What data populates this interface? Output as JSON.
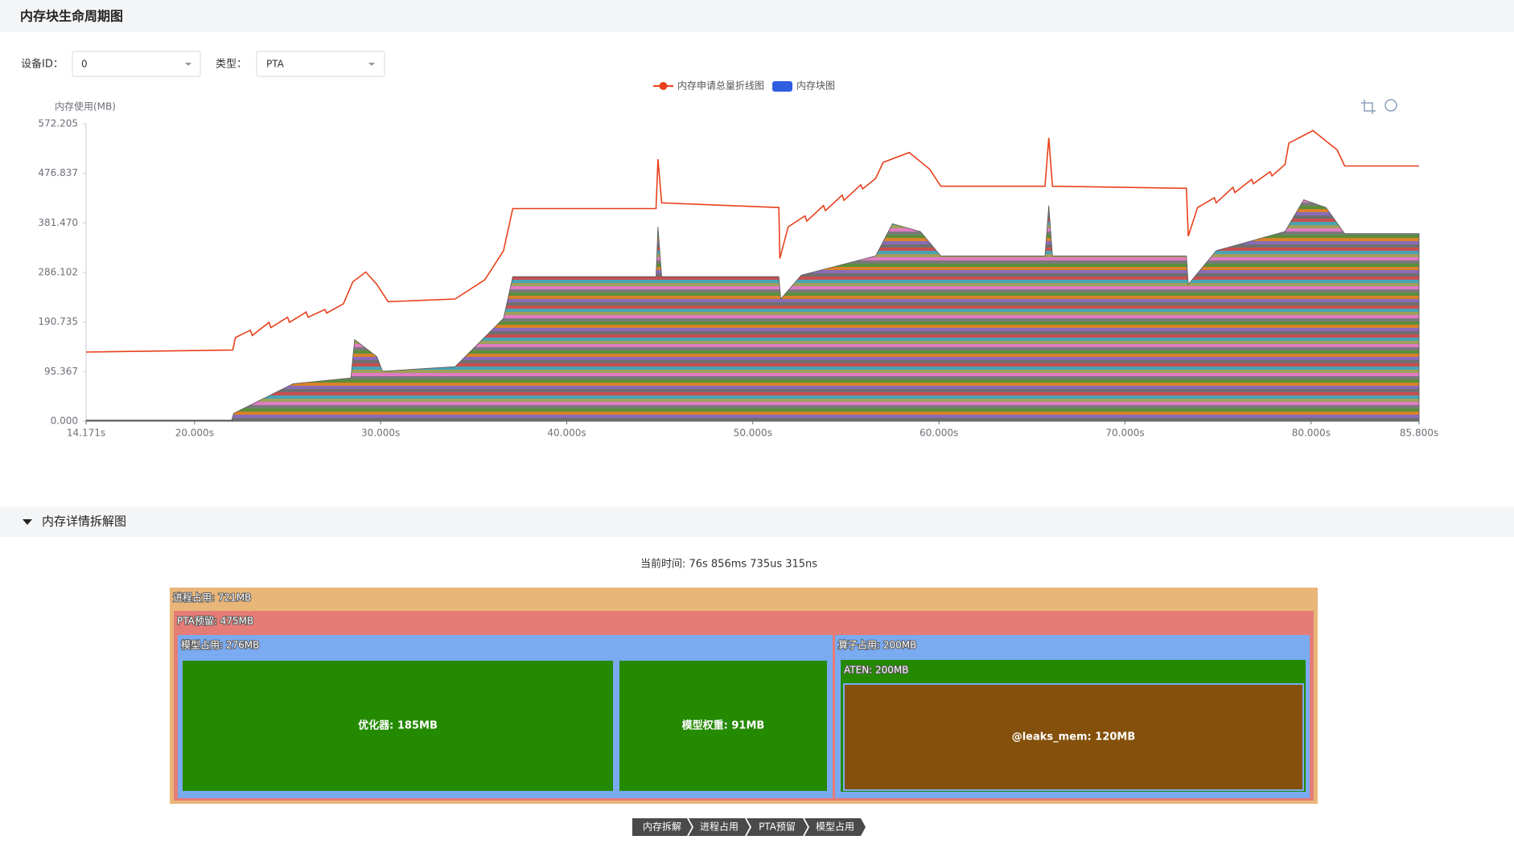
{
  "header": {
    "title": "内存块生命周期图"
  },
  "controls": {
    "device_label": "设备ID：",
    "device_value": "0",
    "type_label": "类型：",
    "type_value": "PTA"
  },
  "chart_data": {
    "type": "line",
    "ylabel": "内存使用(MB)",
    "xlim": [
      14.171,
      85.8
    ],
    "ylim": [
      0,
      572.205
    ],
    "xticks": [
      {
        "value": 14.171,
        "label": "14.171s"
      },
      {
        "value": 20,
        "label": "20.000s"
      },
      {
        "value": 30,
        "label": "30.000s"
      },
      {
        "value": 40,
        "label": "40.000s"
      },
      {
        "value": 50,
        "label": "50.000s"
      },
      {
        "value": 60,
        "label": "60.000s"
      },
      {
        "value": 70,
        "label": "70.000s"
      },
      {
        "value": 80,
        "label": "80.000s"
      },
      {
        "value": 85.8,
        "label": "85.800s"
      }
    ],
    "yticks": [
      {
        "value": 0,
        "label": "0.000"
      },
      95.367,
      {
        "value": 190.735,
        "label": "190.735"
      },
      286.102,
      {
        "value": 381.47,
        "label": "381.470"
      },
      476.837,
      572.205
    ],
    "grid": false,
    "series": [
      {
        "name": "内存申请总量折线图",
        "color": "#e8401c",
        "kind": "line",
        "x": [
          14.171,
          22.05,
          22.2,
          23,
          23.1,
          24,
          24.1,
          25,
          25.1,
          26,
          26.1,
          27,
          27.1,
          28,
          28.5,
          29.2,
          29.8,
          30.4,
          34,
          35.6,
          36.6,
          37.1,
          44.8,
          44.9,
          45.1,
          51.4,
          51.45,
          51.9,
          52.8,
          52.9,
          53.8,
          53.9,
          54.8,
          54.9,
          55.8,
          55.9,
          56.6,
          57,
          58.4,
          59.5,
          60.1,
          65.7,
          65.9,
          66.1,
          73.3,
          73.4,
          73.9,
          74.8,
          74.9,
          75.8,
          75.9,
          76.8,
          76.9,
          77.8,
          77.9,
          78.6,
          78.8,
          80.1,
          81.4,
          81.8,
          85.8
        ],
        "values": [
          133,
          137,
          161,
          175,
          165,
          190,
          180,
          200,
          190,
          210,
          200,
          215,
          208,
          226,
          268,
          287,
          263,
          230,
          235,
          272,
          328,
          409,
          409,
          504,
          420,
          411,
          313,
          374,
          395,
          385,
          415,
          405,
          435,
          425,
          455,
          447,
          467,
          498,
          517,
          485,
          452,
          452,
          545,
          452,
          448,
          356,
          411,
          430,
          420,
          450,
          440,
          465,
          457,
          480,
          472,
          494,
          535,
          559,
          522,
          491,
          491
        ]
      },
      {
        "name": "内存块图",
        "color": "#2f5fe0",
        "kind": "area",
        "x": [
          14.171,
          22.0,
          22.1,
          25.3,
          28.4,
          28.6,
          29.8,
          30.1,
          34.0,
          36.6,
          37.1,
          44.8,
          44.9,
          45.1,
          51.4,
          51.5,
          52.6,
          56.6,
          57.5,
          59.0,
          60.1,
          65.7,
          65.9,
          66.1,
          73.3,
          73.4,
          74.9,
          78.6,
          79.6,
          80.8,
          81.8,
          85.8
        ],
        "values": [
          2,
          2,
          15,
          72,
          83,
          157,
          124,
          96,
          105,
          198,
          278,
          278,
          374,
          278,
          278,
          235,
          281,
          318,
          380,
          365,
          318,
          318,
          415,
          318,
          318,
          263,
          328,
          365,
          426,
          411,
          361,
          361
        ]
      }
    ]
  },
  "detail": {
    "title": "内存详情拆解图",
    "current_time": "当前时间: 76s 856ms 735us 315ns",
    "treemap": [
      {
        "label": "进程占用: 721MB",
        "color": "#e9b67a"
      },
      {
        "label": "PTA预留: 475MB",
        "color": "#e67c76"
      },
      {
        "label": "模型占用: 276MB",
        "color": "#7aaaf0"
      },
      {
        "label": "优化器: 185MB",
        "color": "#248a02"
      },
      {
        "label": "模型权重: 91MB",
        "color": "#248a02"
      },
      {
        "label": "算子占用: 200MB",
        "color": "#7aaaf0"
      },
      {
        "label": "ATEN: 200MB",
        "color": "#248a02"
      },
      {
        "label": "@leaks_mem: 120MB",
        "color": "#84500b"
      }
    ],
    "breadcrumb": [
      "内存拆解",
      "进程占用",
      "PTA预留",
      "模型占用"
    ]
  }
}
